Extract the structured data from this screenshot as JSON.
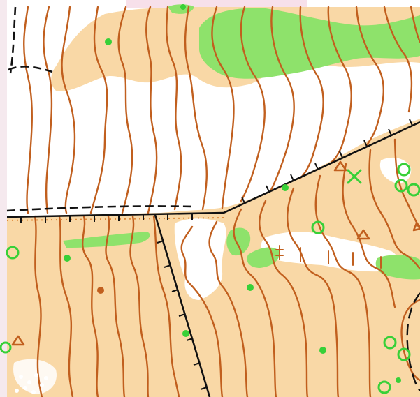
{
  "map": {
    "type": "orienteering-map",
    "colors": {
      "open_land": "#f9d8a6",
      "vegetation_green": "#8ee26b",
      "contour": "#c15f1e",
      "boundary_line": "#111111",
      "track_dashed": "#111111",
      "symbol_green": "#38d038",
      "symbol_brown": "#c15f1e",
      "pale_magenta_edge": "#f7e0ea"
    },
    "features": [
      "contour-lines",
      "open-land-fill",
      "green-vegetation",
      "boundary-fences",
      "dashed-track",
      "green-circle-features",
      "green-dot-features",
      "brown-triangle-features",
      "green-cross-feature",
      "depression-ticks"
    ]
  }
}
